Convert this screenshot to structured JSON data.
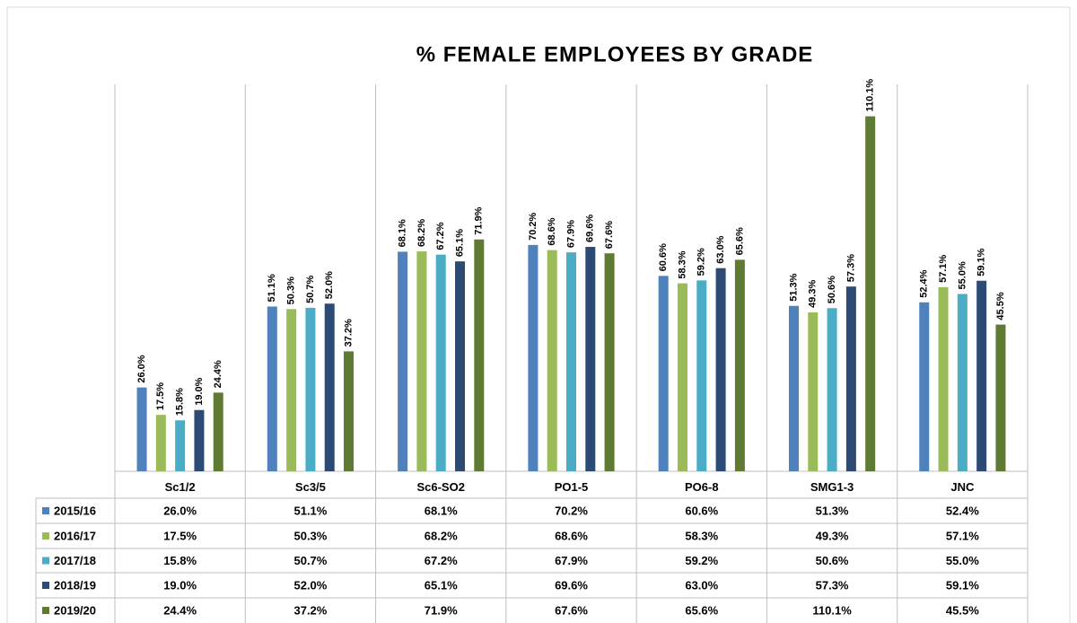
{
  "chart_data": {
    "type": "bar",
    "title": "% FEMALE EMPLOYEES BY GRADE",
    "categories": [
      "Sc1/2",
      "Sc3/5",
      "Sc6-SO2",
      "PO1-5",
      "PO6-8",
      "SMG1-3",
      "JNC"
    ],
    "ylim": [
      0,
      120
    ],
    "series": [
      {
        "name": "2015/16",
        "color": "#4f81bd",
        "values": [
          26.0,
          51.1,
          68.1,
          70.2,
          60.6,
          51.3,
          52.4
        ],
        "value_labels": [
          "26.0%",
          "51.1%",
          "68.1%",
          "70.2%",
          "60.6%",
          "51.3%",
          "52.4%"
        ]
      },
      {
        "name": "2016/17",
        "color": "#9bbb59",
        "values": [
          17.5,
          50.3,
          68.2,
          68.6,
          58.3,
          49.3,
          57.1
        ],
        "value_labels": [
          "17.5%",
          "50.3%",
          "68.2%",
          "68.6%",
          "58.3%",
          "49.3%",
          "57.1%"
        ]
      },
      {
        "name": "2017/18",
        "color": "#4bacc6",
        "values": [
          15.8,
          50.7,
          67.2,
          67.9,
          59.2,
          50.6,
          55.0
        ],
        "value_labels": [
          "15.8%",
          "50.7%",
          "67.2%",
          "67.9%",
          "59.2%",
          "50.6%",
          "55.0%"
        ]
      },
      {
        "name": "2018/19",
        "color": "#2c4a74",
        "values": [
          19.0,
          52.0,
          65.1,
          69.6,
          63.0,
          57.3,
          59.1
        ],
        "value_labels": [
          "19.0%",
          "52.0%",
          "65.1%",
          "69.6%",
          "63.0%",
          "57.3%",
          "59.1%"
        ]
      },
      {
        "name": "2019/20",
        "color": "#5f7a32",
        "values": [
          24.4,
          37.2,
          71.9,
          67.6,
          65.6,
          110.1,
          45.5
        ],
        "value_labels": [
          "24.4%",
          "37.2%",
          "71.9%",
          "67.6%",
          "65.6%",
          "110.1%",
          "45.5%"
        ]
      }
    ]
  }
}
